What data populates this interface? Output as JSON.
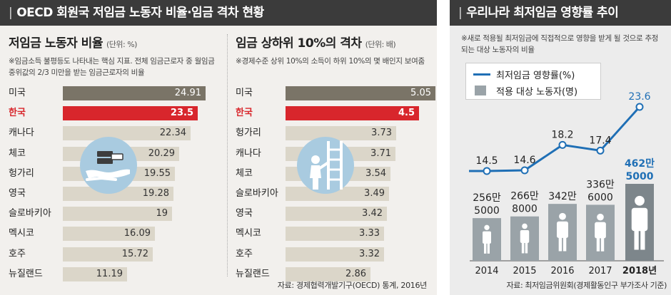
{
  "left_panel": {
    "header": "OECD 회원국 저임금 노동자 비율·임금 격차 현황",
    "source": "자료: 경제협력개발기구(OECD) 통계, 2016년"
  },
  "right_panel": {
    "header": "우리나라 최저임금 영향률 추이",
    "note": "※새로 적용될 최저임금에 직접적으로 영향을 받게 될 것으로 추정되는 대상 노동자의 비율",
    "source": "자료: 최저임금위원회(경제활동인구 부가조사 기준)"
  },
  "chart_data": [
    {
      "type": "bar",
      "orientation": "horizontal",
      "title": "저임금 노동자 비율",
      "unit": "(단위: %)",
      "note": "※임금소득 불평등도 나타내는 핵심 지표. 전체 임금근로자 중 월임금 중위값의 2/3 미만을 받는 임금근로자의 비율",
      "categories": [
        "미국",
        "한국",
        "캐나다",
        "체코",
        "헝가리",
        "영국",
        "슬로바키아",
        "멕시코",
        "호주",
        "뉴질랜드"
      ],
      "labels": [
        "24.91",
        "23.5",
        "22.34",
        "20.29",
        "19.55",
        "19.28",
        "19",
        "16.09",
        "15.72",
        "11.19"
      ],
      "values": [
        24.91,
        23.5,
        22.34,
        20.29,
        19.55,
        19.28,
        19,
        16.09,
        15.72,
        11.19
      ],
      "highlight": "한국",
      "colors": {
        "top": "#7a7467",
        "highlight": "#d8262c",
        "default": "#dbd6c9"
      }
    },
    {
      "type": "bar",
      "orientation": "horizontal",
      "title": "임금 상하위 10%의 격차",
      "unit": "(단위: 배)",
      "note": "※경제수준 상위 10%의 소득이 하위 10%의 몇 배인지 보여줌",
      "categories": [
        "미국",
        "한국",
        "헝가리",
        "캐나다",
        "체코",
        "슬로바키아",
        "영국",
        "멕시코",
        "호주",
        "뉴질랜드"
      ],
      "labels": [
        "5.05",
        "4.5",
        "3.73",
        "3.71",
        "3.54",
        "3.49",
        "3.42",
        "3.33",
        "3.32",
        "2.86"
      ],
      "values": [
        5.05,
        4.5,
        3.73,
        3.71,
        3.54,
        3.49,
        3.42,
        3.33,
        3.32,
        2.86
      ],
      "highlight": "한국",
      "colors": {
        "top": "#7a7467",
        "highlight": "#d8262c",
        "default": "#dbd6c9"
      }
    },
    {
      "type": "bar+line",
      "categories": [
        "2014",
        "2015",
        "2016",
        "2017",
        "2018년"
      ],
      "series": [
        {
          "name": "최저임금 영향률(%)",
          "type": "line",
          "values": [
            14.5,
            14.6,
            18.2,
            17.4,
            23.6
          ],
          "labels": [
            "14.5",
            "14.6",
            "18.2",
            "17.4",
            "23.6"
          ],
          "color": "#1f6fb5"
        },
        {
          "name": "적용 대상 노동자(명)",
          "type": "bar",
          "values": [
            2565000,
            2668000,
            3420000,
            3366000,
            4625000
          ],
          "label_lines": [
            [
              "256만",
              "5000"
            ],
            [
              "266만",
              "8000"
            ],
            [
              "342만"
            ],
            [
              "336만",
              "6000"
            ],
            [
              "462만",
              "5000"
            ]
          ],
          "color": "#9aa3a8",
          "highlight_color": "#7d868b"
        }
      ],
      "highlight_label_color": "#1f6fb5"
    }
  ]
}
